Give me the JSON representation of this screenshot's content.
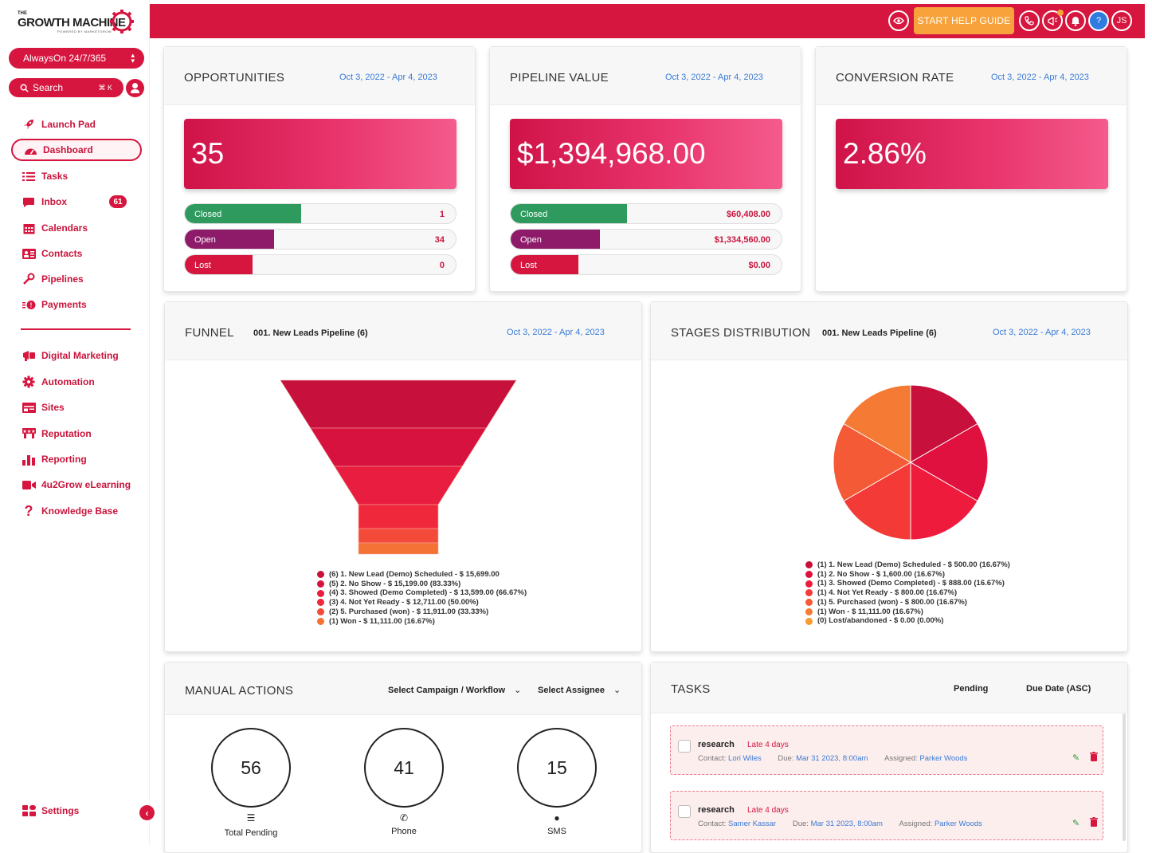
{
  "brand": {
    "the": "THE",
    "name": "GROWTH MACHINE",
    "powered": "POWERED BY MARKETGROW"
  },
  "sidebar": {
    "workspace": "AlwaysOn 24/7/365",
    "search_label": "Search",
    "search_shortcut": "⌘ K",
    "items": [
      {
        "label": "Launch Pad",
        "icon": "rocket-icon"
      },
      {
        "label": "Dashboard",
        "icon": "gauge-icon",
        "active": true
      },
      {
        "label": "Tasks",
        "icon": "list-check-icon"
      },
      {
        "label": "Inbox",
        "icon": "chat-icon",
        "badge": "61"
      },
      {
        "label": "Calendars",
        "icon": "calendar-icon"
      },
      {
        "label": "Contacts",
        "icon": "contact-card-icon"
      },
      {
        "label": "Pipelines",
        "icon": "filter-icon"
      },
      {
        "label": "Payments",
        "icon": "payment-icon"
      }
    ],
    "items2": [
      {
        "label": "Digital Marketing",
        "icon": "megaphone-icon"
      },
      {
        "label": "Automation",
        "icon": "cog-icon"
      },
      {
        "label": "Sites",
        "icon": "browser-icon"
      },
      {
        "label": "Reputation",
        "icon": "star-icon"
      },
      {
        "label": "Reporting",
        "icon": "bar-chart-icon"
      },
      {
        "label": "4u2Grow eLearning",
        "icon": "video-icon"
      },
      {
        "label": "Knowledge Base",
        "icon": "question-icon"
      }
    ],
    "settings_label": "Settings"
  },
  "topbar": {
    "help_guide": "START HELP GUIDE",
    "user_initials": "JS",
    "help_symbol": "?"
  },
  "opportunities": {
    "title": "OPPORTUNITIES",
    "date_range": "Oct 3, 2022 - Apr 4, 2023",
    "total": "35",
    "rows": [
      {
        "label": "Closed",
        "value": "1",
        "fill": 0.43,
        "color": "#2e9a5e"
      },
      {
        "label": "Open",
        "value": "34",
        "fill": 0.33,
        "color": "#8e1a6a"
      },
      {
        "label": "Lost",
        "value": "0",
        "fill": 0.25,
        "color": "#d6163f"
      }
    ]
  },
  "pipeline_value": {
    "title": "PIPELINE VALUE",
    "date_range": "Oct 3, 2022 - Apr 4, 2023",
    "total": "$1,394,968.00",
    "rows": [
      {
        "label": "Closed",
        "value": "$60,408.00",
        "fill": 0.43,
        "color": "#2e9a5e"
      },
      {
        "label": "Open",
        "value": "$1,334,560.00",
        "fill": 0.33,
        "color": "#8e1a6a"
      },
      {
        "label": "Lost",
        "value": "$0.00",
        "fill": 0.25,
        "color": "#d6163f"
      }
    ]
  },
  "conversion_rate": {
    "title": "CONVERSION RATE",
    "date_range": "Oct 3, 2022 - Apr 4, 2023",
    "total": "2.86%"
  },
  "funnel": {
    "title": "FUNNEL",
    "pipeline": "001. New Leads Pipeline (6)",
    "date_range": "Oct 3, 2022 - Apr 4, 2023",
    "legend": [
      {
        "text": "(6) 1. New Lead (Demo) Scheduled - $ 15,699.00",
        "color": "#c8103c"
      },
      {
        "text": "(5) 2. No Show - $ 15,199.00 (83.33%)",
        "color": "#d8123f"
      },
      {
        "text": "(4) 3. Showed (Demo Completed) - $ 13,599.00 (66.67%)",
        "color": "#e81d3f"
      },
      {
        "text": "(3) 4. Not Yet Ready - $ 12,711.00 (50.00%)",
        "color": "#f0283c"
      },
      {
        "text": "(2) 5. Purchased (won) - $ 11,911.00 (33.33%)",
        "color": "#f44a3a"
      },
      {
        "text": "(1) Won - $ 11,111.00 (16.67%)",
        "color": "#f57236"
      }
    ]
  },
  "stages": {
    "title": "STAGES DISTRIBUTION",
    "pipeline": "001. New Leads Pipeline (6)",
    "date_range": "Oct 3, 2022 - Apr 4, 2023",
    "legend": [
      {
        "text": "(1) 1. New Lead (Demo) Scheduled - $ 500.00 (16.67%)",
        "color": "#c8103c"
      },
      {
        "text": "(1) 2. No Show - $ 1,600.00 (16.67%)",
        "color": "#e0103f"
      },
      {
        "text": "(1) 3. Showed (Demo Completed) - $ 888.00 (16.67%)",
        "color": "#ee1b3c"
      },
      {
        "text": "(1) 4. Not Yet Ready - $ 800.00 (16.67%)",
        "color": "#f33a36"
      },
      {
        "text": "(1) 5. Purchased (won) - $ 800.00 (16.67%)",
        "color": "#f55a36"
      },
      {
        "text": "(1) Won - $ 11,111.00 (16.67%)",
        "color": "#f57a33"
      },
      {
        "text": "(0) Lost/abandoned - $ 0.00 (0.00%)",
        "color": "#f79a30"
      }
    ]
  },
  "manual_actions": {
    "title": "MANUAL ACTIONS",
    "campaign_select": "Select Campaign / Workflow",
    "assignee_select": "Select Assignee",
    "stats": [
      {
        "value": "56",
        "label": "Total Pending",
        "icon": "list-icon"
      },
      {
        "value": "41",
        "label": "Phone",
        "icon": "phone-icon"
      },
      {
        "value": "15",
        "label": "SMS",
        "icon": "sms-icon"
      }
    ]
  },
  "tasks": {
    "title": "TASKS",
    "filter_status": "Pending",
    "sort": "Due Date (ASC)",
    "items": [
      {
        "name": "research",
        "late": "Late 4 days",
        "contact_label": "Contact:",
        "contact": "Lori Wiles",
        "due_label": "Due:",
        "due": "Mar 31 2023, 8:00am",
        "assigned_label": "Assigned:",
        "assigned": "Parker Woods"
      },
      {
        "name": "research",
        "late": "Late 4 days",
        "contact_label": "Contact:",
        "contact": "Samer Kassar",
        "due_label": "Due:",
        "due": "Mar 31 2023, 8:00am",
        "assigned_label": "Assigned:",
        "assigned": "Parker Woods"
      }
    ]
  },
  "chart_data": [
    {
      "type": "bar",
      "title": "FUNNEL",
      "categories": [
        "1. New Lead (Demo) Scheduled",
        "2. No Show",
        "3. Showed (Demo Completed)",
        "4. Not Yet Ready",
        "5. Purchased (won)",
        "Won"
      ],
      "counts": [
        6,
        5,
        4,
        3,
        2,
        1
      ],
      "values": [
        15699,
        15199,
        13599,
        12711,
        11911,
        11111
      ],
      "percent": [
        null,
        83.33,
        66.67,
        50.0,
        33.33,
        16.67
      ]
    },
    {
      "type": "pie",
      "title": "STAGES DISTRIBUTION",
      "categories": [
        "1. New Lead (Demo) Scheduled",
        "2. No Show",
        "3. Showed (Demo Completed)",
        "4. Not Yet Ready",
        "5. Purchased (won)",
        "Won",
        "Lost/abandoned"
      ],
      "counts": [
        1,
        1,
        1,
        1,
        1,
        1,
        0
      ],
      "values": [
        500,
        1600,
        888,
        800,
        800,
        11111,
        0
      ],
      "percent": [
        16.67,
        16.67,
        16.67,
        16.67,
        16.67,
        16.67,
        0.0
      ]
    }
  ]
}
